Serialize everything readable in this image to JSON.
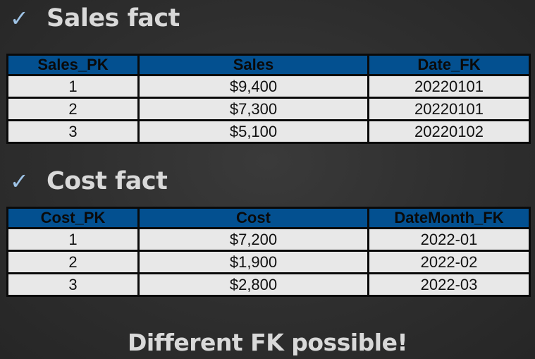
{
  "sales_section": {
    "heading": "Sales fact",
    "check_glyph": "✓",
    "columns": [
      "Sales_PK",
      "Sales",
      "Date_FK"
    ],
    "rows": [
      [
        "1",
        "$9,400",
        "20220101"
      ],
      [
        "2",
        "$7,300",
        "20220101"
      ],
      [
        "3",
        "$5,100",
        "20220102"
      ]
    ]
  },
  "cost_section": {
    "heading": "Cost fact",
    "check_glyph": "✓",
    "columns": [
      "Cost_PK",
      "Cost",
      "DateMonth_FK"
    ],
    "rows": [
      [
        "1",
        "$7,200",
        "2022-01"
      ],
      [
        "2",
        "$1,900",
        "2022-02"
      ],
      [
        "3",
        "$2,800",
        "2022-03"
      ]
    ]
  },
  "footer": {
    "text": "Different FK possible!"
  },
  "colors": {
    "background": "#2e2e2e",
    "heading_text": "#d9d9d9",
    "check_icon": "#9ec3e6",
    "table_header": "#035090",
    "table_cell": "#e8e8e8",
    "table_border": "#0a0a0a"
  },
  "icons": {
    "heading_bullet": "check-icon"
  }
}
